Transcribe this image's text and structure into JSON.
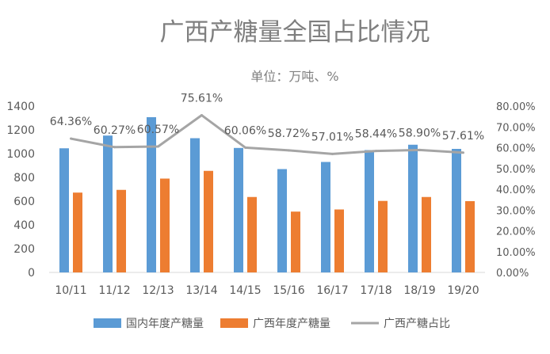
{
  "chart_data": {
    "type": "bar",
    "title": "广西产糖量全国占比情况",
    "subtitle": "单位：万吨、%",
    "categories": [
      "10/11",
      "11/12",
      "12/13",
      "13/14",
      "14/15",
      "15/16",
      "16/17",
      "17/18",
      "18/19",
      "19/20"
    ],
    "series": [
      {
        "name": "国内年度产糖量",
        "type": "bar",
        "axis": "left",
        "color": "#5B9BD5",
        "values": [
          1045,
          1152,
          1307,
          1130,
          1048,
          870,
          930,
          1030,
          1075,
          1040
        ]
      },
      {
        "name": "广西年度产糖量",
        "type": "bar",
        "axis": "left",
        "color": "#ED7D31",
        "values": [
          672,
          695,
          790,
          855,
          635,
          512,
          530,
          602,
          635,
          600
        ]
      },
      {
        "name": "广西产糖占比",
        "type": "line",
        "axis": "right",
        "color": "#A5A5A5",
        "values": [
          64.36,
          60.27,
          60.57,
          75.61,
          60.06,
          58.72,
          57.01,
          58.44,
          58.9,
          57.61
        ],
        "labels": [
          "64.36%",
          "60.27%",
          "60.57%",
          "75.61%",
          "60.06%",
          "58.72%",
          "57.01%",
          "58.44%",
          "58.90%",
          "57.61%"
        ]
      }
    ],
    "y_left": {
      "min": 0,
      "max": 1400,
      "ticks": [
        "0",
        "200",
        "400",
        "600",
        "800",
        "1000",
        "1200",
        "1400"
      ]
    },
    "y_right": {
      "min": 0,
      "max": 80,
      "ticks": [
        "0.00%",
        "10.00%",
        "20.00%",
        "30.00%",
        "40.00%",
        "50.00%",
        "60.00%",
        "70.00%",
        "80.00%"
      ]
    },
    "grid": false,
    "legend": "bottom"
  }
}
